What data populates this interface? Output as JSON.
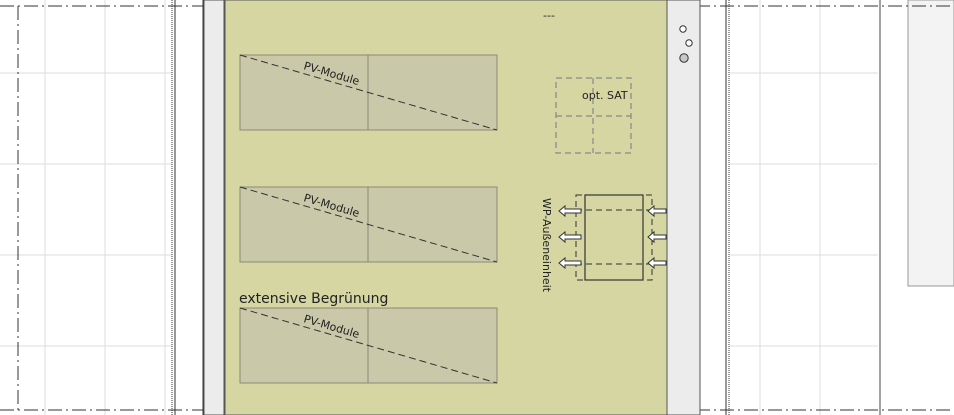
{
  "labels": {
    "top_marker": "---",
    "pv_module": "PV-Module",
    "sat": "opt. SAT",
    "wp": "WP-Außeneinheit",
    "greening": "extensive Begrünung"
  },
  "colors": {
    "roof_fill": "#d5d6a2",
    "panel_fill": "#c9c8a8",
    "panel_stroke": "#8a8a78",
    "side_strip": "#ececec",
    "grid_line": "#dcdcdc"
  },
  "icons": {
    "rooftop_vents": "circle-icon",
    "airflow": "arrow-left-icon"
  }
}
